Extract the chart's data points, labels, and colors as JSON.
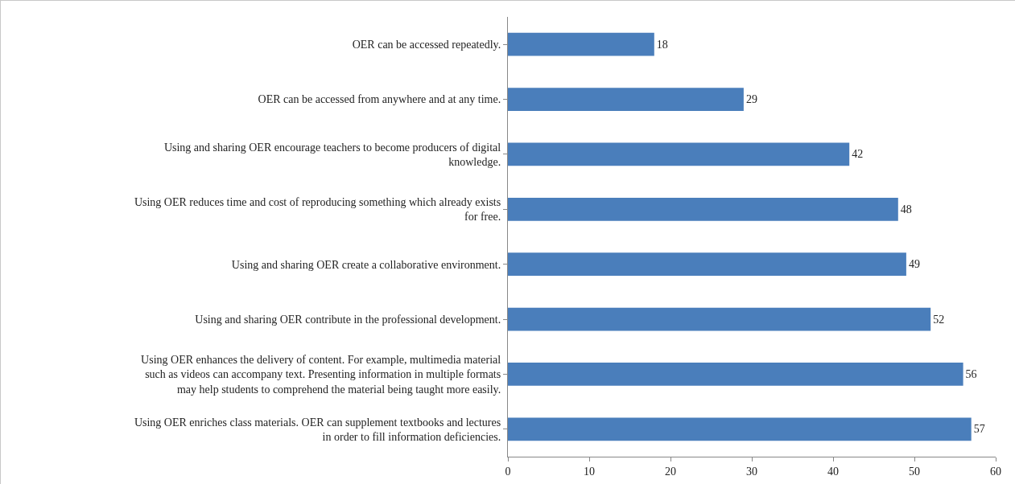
{
  "chart_data": {
    "type": "bar",
    "orientation": "horizontal",
    "categories": [
      "OER can be accessed repeatedly.",
      "OER can be accessed from anywhere and at any time.",
      "Using and sharing OER encourage teachers to become producers of digital knowledge.",
      "Using OER reduces time and cost of reproducing something which already exists for free.",
      "Using and sharing OER create a collaborative environment.",
      "Using and sharing OER contribute in the professional development.",
      "Using OER enhances the delivery of content. For example, multimedia material such as videos can accompany text. Presenting information in multiple formats may help students to comprehend the material being taught more easily.",
      "Using OER enriches class materials. OER can supplement textbooks and lectures in order to fill information deficiencies."
    ],
    "values": [
      18,
      29,
      42,
      48,
      49,
      52,
      56,
      57
    ],
    "color": "#4a7ebb",
    "data_labels": true,
    "grid": false,
    "legend": false,
    "xlim": [
      0,
      60
    ],
    "xticks": [
      0,
      10,
      20,
      30,
      40,
      50,
      60
    ]
  }
}
